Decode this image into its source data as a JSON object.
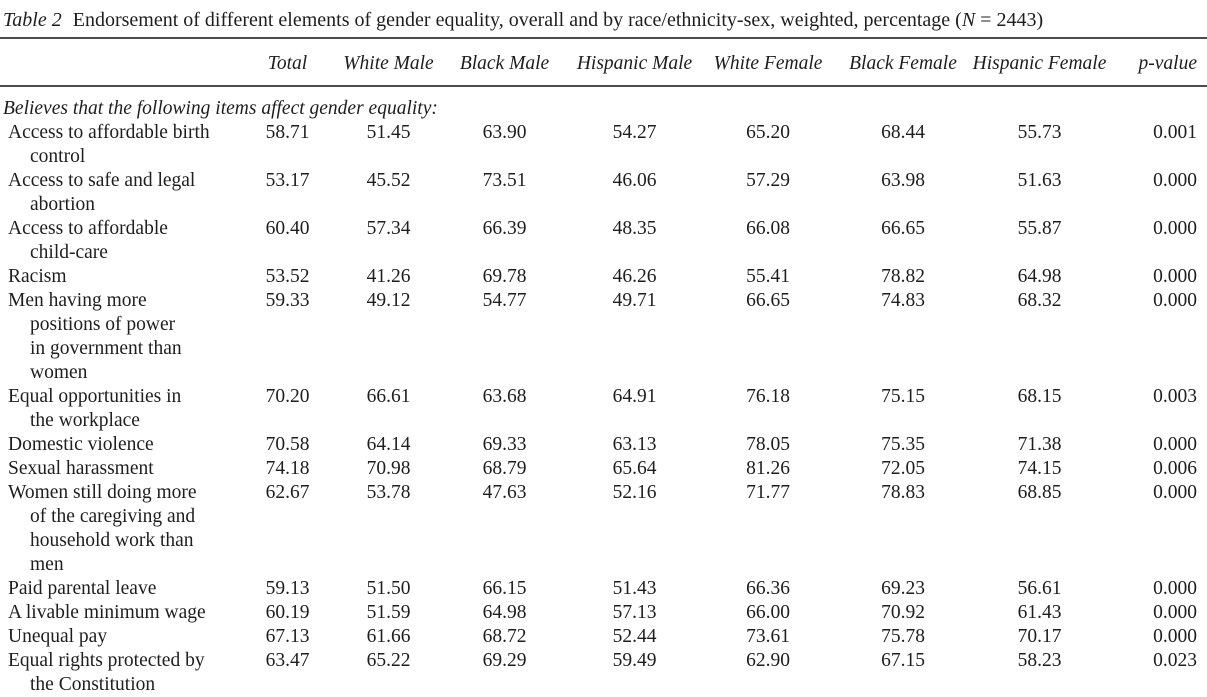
{
  "caption": {
    "table_label": "Table 2",
    "body": "Endorsement of different elements of gender equality, overall and by race/ethnicity-sex, weighted, percentage",
    "n_open": "(",
    "n_symbol": "N",
    "n_rest": " = 2443)"
  },
  "table": {
    "columns": [
      "Total",
      "White Male",
      "Black Male",
      "Hispanic Male",
      "White Female",
      "Black Female",
      "Hispanic Female",
      "p-value"
    ],
    "section_header": "Believes that the following items affect gender equality:",
    "rows": [
      {
        "label": "Access to affordable birth\ncontrol",
        "values": [
          "58.71",
          "51.45",
          "63.90",
          "54.27",
          "65.20",
          "68.44",
          "55.73",
          "0.001"
        ]
      },
      {
        "label": "Access to safe and legal\nabortion",
        "values": [
          "53.17",
          "45.52",
          "73.51",
          "46.06",
          "57.29",
          "63.98",
          "51.63",
          "0.000"
        ]
      },
      {
        "label": "Access to affordable\nchild-care",
        "values": [
          "60.40",
          "57.34",
          "66.39",
          "48.35",
          "66.08",
          "66.65",
          "55.87",
          "0.000"
        ]
      },
      {
        "label": "Racism",
        "values": [
          "53.52",
          "41.26",
          "69.78",
          "46.26",
          "55.41",
          "78.82",
          "64.98",
          "0.000"
        ]
      },
      {
        "label": "Men having more\npositions of power\nin government than\nwomen",
        "values": [
          "59.33",
          "49.12",
          "54.77",
          "49.71",
          "66.65",
          "74.83",
          "68.32",
          "0.000"
        ]
      },
      {
        "label": "Equal opportunities in\nthe workplace",
        "values": [
          "70.20",
          "66.61",
          "63.68",
          "64.91",
          "76.18",
          "75.15",
          "68.15",
          "0.003"
        ]
      },
      {
        "label": "Domestic violence",
        "values": [
          "70.58",
          "64.14",
          "69.33",
          "63.13",
          "78.05",
          "75.35",
          "71.38",
          "0.000"
        ]
      },
      {
        "label": "Sexual harassment",
        "values": [
          "74.18",
          "70.98",
          "68.79",
          "65.64",
          "81.26",
          "72.05",
          "74.15",
          "0.006"
        ]
      },
      {
        "label": "Women still doing more\nof the caregiving and\nhousehold work than\nmen",
        "values": [
          "62.67",
          "53.78",
          "47.63",
          "52.16",
          "71.77",
          "78.83",
          "68.85",
          "0.000"
        ]
      },
      {
        "label": "Paid parental leave",
        "values": [
          "59.13",
          "51.50",
          "66.15",
          "51.43",
          "66.36",
          "69.23",
          "56.61",
          "0.000"
        ]
      },
      {
        "label": "A livable minimum wage",
        "values": [
          "60.19",
          "51.59",
          "64.98",
          "57.13",
          "66.00",
          "70.92",
          "61.43",
          "0.000"
        ]
      },
      {
        "label": "Unequal pay",
        "values": [
          "67.13",
          "61.66",
          "68.72",
          "52.44",
          "73.61",
          "75.78",
          "70.17",
          "0.000"
        ]
      },
      {
        "label": "Equal rights protected by\nthe Constitution",
        "values": [
          "63.47",
          "65.22",
          "69.29",
          "59.49",
          "62.90",
          "67.15",
          "58.23",
          "0.023"
        ]
      }
    ]
  }
}
